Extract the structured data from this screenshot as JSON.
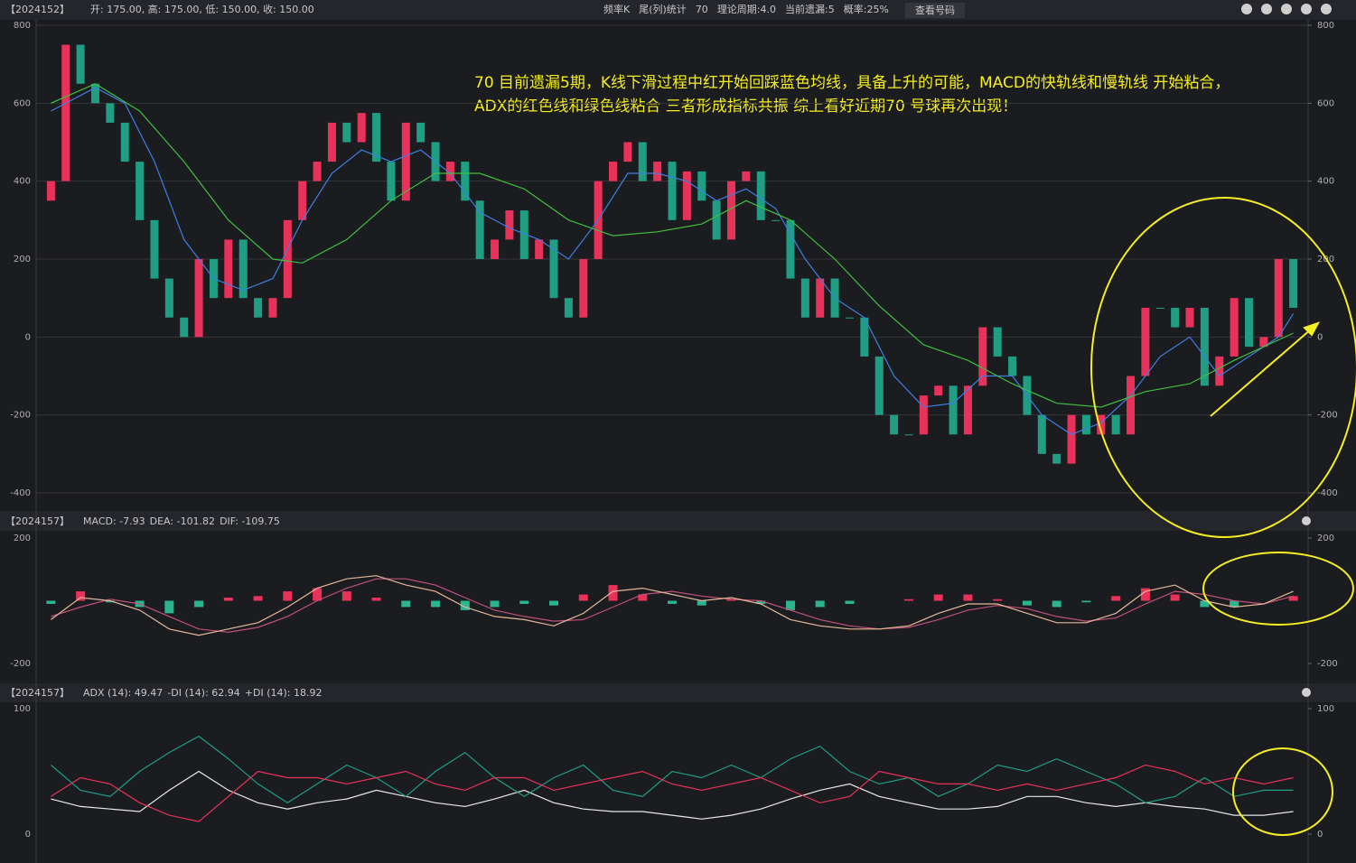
{
  "toolbar": {
    "items": [
      "频率K",
      "尾(列)统计",
      "70",
      "理论周期:4.0",
      "当前遗漏:5",
      "概率:25%"
    ],
    "button": "查看号码"
  },
  "chart_data": [
    {
      "type": "candlestick",
      "title": "【2024152】",
      "subtitle": "开: 175.00, 高: 175.00, 低: 150.00, 收: 150.00",
      "annotations": [
        "70 目前遗漏5期，K线下滑过程中红开始回踩蓝色均线，具备上升的可能，MACD的快轨线和慢轨线 开始粘合，",
        "ADX的红色线和绿色线粘合  三者形成指标共振  综上看好近期70 号球再次出现！"
      ],
      "open": [
        350,
        400,
        750,
        650,
        600,
        550,
        450,
        300,
        150,
        50,
        0,
        200,
        100,
        250,
        100,
        50,
        100,
        300,
        400,
        450,
        550,
        500,
        575,
        450,
        350,
        550,
        500,
        400,
        450,
        350,
        200,
        250,
        325,
        200,
        250,
        100,
        50,
        200,
        400,
        450,
        500,
        400,
        450,
        300,
        425,
        350,
        250,
        400,
        425,
        300,
        300,
        150,
        50,
        150,
        50,
        50,
        -50,
        -200,
        -250,
        -250,
        -150,
        -125,
        -250,
        -125,
        25,
        -50,
        -100,
        -200,
        -300,
        -325,
        -200,
        -250,
        -200,
        -250,
        -100,
        75,
        75,
        25,
        75,
        -125,
        -50,
        100,
        -25,
        0,
        200
      ],
      "close": [
        400,
        750,
        650,
        600,
        550,
        450,
        300,
        150,
        50,
        0,
        200,
        100,
        250,
        100,
        50,
        100,
        300,
        400,
        450,
        550,
        500,
        575,
        450,
        350,
        550,
        500,
        400,
        450,
        350,
        200,
        250,
        325,
        200,
        250,
        100,
        50,
        200,
        400,
        450,
        500,
        400,
        450,
        300,
        425,
        350,
        250,
        400,
        425,
        300,
        300,
        150,
        50,
        150,
        50,
        50,
        -50,
        -200,
        -250,
        -250,
        -150,
        -125,
        -250,
        -125,
        25,
        -50,
        -100,
        -200,
        -300,
        -325,
        -200,
        -250,
        -200,
        -250,
        -100,
        75,
        75,
        25,
        75,
        -125,
        -50,
        100,
        -25,
        0,
        200,
        75
      ],
      "up_color": "#e8325a",
      "down_color": "#1f9e83",
      "series": [
        {
          "color": "#3d7fe0",
          "x": [
            0,
            3,
            5,
            7,
            9,
            11,
            13,
            15,
            17,
            19,
            21,
            23,
            25,
            27,
            29,
            31,
            33,
            35,
            37,
            39,
            41,
            43,
            45,
            47,
            49,
            51,
            53,
            55,
            57,
            59,
            61,
            63,
            65,
            67,
            69,
            71,
            73,
            75,
            77,
            79,
            81,
            83,
            84
          ],
          "values": [
            580,
            640,
            600,
            450,
            250,
            150,
            120,
            150,
            300,
            420,
            480,
            450,
            480,
            420,
            320,
            280,
            250,
            200,
            300,
            420,
            420,
            400,
            350,
            380,
            330,
            200,
            100,
            50,
            -100,
            -180,
            -170,
            -100,
            -100,
            -200,
            -250,
            -220,
            -150,
            -50,
            0,
            -100,
            -50,
            0,
            60
          ]
        },
        {
          "color": "#3fbf3f",
          "x": [
            0,
            3,
            6,
            9,
            12,
            15,
            17,
            20,
            23,
            26,
            29,
            32,
            35,
            38,
            41,
            44,
            47,
            50,
            53,
            56,
            59,
            62,
            65,
            68,
            71,
            74,
            77,
            80,
            84
          ],
          "values": [
            600,
            650,
            580,
            450,
            300,
            200,
            190,
            250,
            350,
            420,
            420,
            380,
            300,
            260,
            270,
            290,
            350,
            300,
            200,
            80,
            -20,
            -60,
            -120,
            -170,
            -180,
            -140,
            -120,
            -60,
            10
          ]
        }
      ],
      "xlim": [
        -1,
        85
      ],
      "ylim": [
        -400,
        800
      ],
      "yticks": [
        -400,
        -200,
        0,
        200,
        400,
        600,
        800
      ],
      "grid": true
    },
    {
      "type": "macd",
      "title": "【2024157】",
      "x": [
        0,
        2,
        4,
        6,
        8,
        10,
        12,
        14,
        16,
        18,
        20,
        22,
        24,
        26,
        28,
        30,
        32,
        34,
        36,
        38,
        40,
        42,
        44,
        46,
        48,
        50,
        52,
        54,
        56,
        58,
        60,
        62,
        64,
        66,
        68,
        70,
        72,
        74,
        76,
        78,
        80,
        82,
        84
      ],
      "series": [
        {
          "name": "MACD: -7.93",
          "type": "bar",
          "color": "#2bb58f",
          "up_color": "#e8325a",
          "values": [
            -10,
            30,
            -5,
            -20,
            -40,
            -20,
            10,
            15,
            30,
            40,
            30,
            10,
            -20,
            -20,
            -30,
            -20,
            -10,
            -15,
            20,
            50,
            20,
            -10,
            -15,
            5,
            -10,
            -30,
            -20,
            -10,
            0,
            5,
            20,
            20,
            5,
            -15,
            -20,
            -5,
            15,
            40,
            20,
            -20,
            -20,
            0,
            15
          ]
        },
        {
          "name": "DEA: -101.82",
          "color": "#c0507a",
          "values": [
            -50,
            -20,
            5,
            -10,
            -50,
            -90,
            -100,
            -85,
            -50,
            0,
            40,
            70,
            70,
            50,
            10,
            -30,
            -50,
            -65,
            -60,
            -20,
            20,
            30,
            15,
            5,
            0,
            -30,
            -60,
            -80,
            -90,
            -85,
            -60,
            -30,
            -15,
            -25,
            -50,
            -65,
            -55,
            -10,
            30,
            20,
            0,
            -10,
            15
          ]
        },
        {
          "name": "DIF: -109.75",
          "color": "#e3b89a",
          "values": [
            -60,
            10,
            0,
            -30,
            -90,
            -110,
            -90,
            -70,
            -20,
            40,
            70,
            80,
            50,
            30,
            -20,
            -50,
            -60,
            -80,
            -40,
            30,
            40,
            20,
            0,
            10,
            -10,
            -60,
            -80,
            -90,
            -90,
            -80,
            -40,
            -10,
            -10,
            -40,
            -70,
            -70,
            -40,
            30,
            50,
            0,
            -20,
            -10,
            30
          ]
        }
      ],
      "xlim": [
        -1,
        85
      ],
      "ylim": [
        -200,
        200
      ],
      "yticks": [
        -200,
        200
      ]
    },
    {
      "type": "adx",
      "title": "【2024157】",
      "x": [
        0,
        2,
        4,
        6,
        8,
        10,
        12,
        14,
        16,
        18,
        20,
        22,
        24,
        26,
        28,
        30,
        32,
        34,
        36,
        38,
        40,
        42,
        44,
        46,
        48,
        50,
        52,
        54,
        56,
        58,
        60,
        62,
        64,
        66,
        68,
        70,
        72,
        74,
        76,
        78,
        80,
        82,
        84
      ],
      "series": [
        {
          "name": "ADX (14): 49.47",
          "color": "#e8e8e8",
          "values": [
            28,
            22,
            20,
            18,
            35,
            50,
            35,
            25,
            20,
            25,
            28,
            35,
            30,
            25,
            22,
            28,
            35,
            25,
            20,
            18,
            18,
            15,
            12,
            15,
            20,
            28,
            35,
            40,
            30,
            25,
            20,
            20,
            22,
            30,
            30,
            25,
            22,
            25,
            22,
            20,
            15,
            15,
            18
          ]
        },
        {
          "name": "-DI (14): 62.94",
          "color": "#1f9e83",
          "values": [
            55,
            35,
            30,
            50,
            65,
            78,
            60,
            40,
            25,
            40,
            55,
            45,
            30,
            50,
            65,
            45,
            30,
            45,
            55,
            35,
            30,
            50,
            45,
            55,
            45,
            60,
            70,
            50,
            40,
            45,
            30,
            40,
            55,
            50,
            60,
            50,
            40,
            25,
            30,
            45,
            30,
            35,
            35
          ]
        },
        {
          "name": "+DI (14): 18.92",
          "color": "#e8325a",
          "values": [
            30,
            45,
            40,
            25,
            15,
            10,
            30,
            50,
            45,
            45,
            40,
            45,
            50,
            40,
            35,
            45,
            45,
            35,
            40,
            45,
            50,
            40,
            35,
            40,
            45,
            35,
            25,
            30,
            50,
            45,
            40,
            40,
            35,
            40,
            35,
            40,
            45,
            55,
            50,
            40,
            45,
            40,
            45
          ]
        }
      ],
      "xlim": [
        -1,
        85
      ],
      "ylim": [
        0,
        100
      ],
      "yticks": [
        0,
        100
      ]
    }
  ]
}
